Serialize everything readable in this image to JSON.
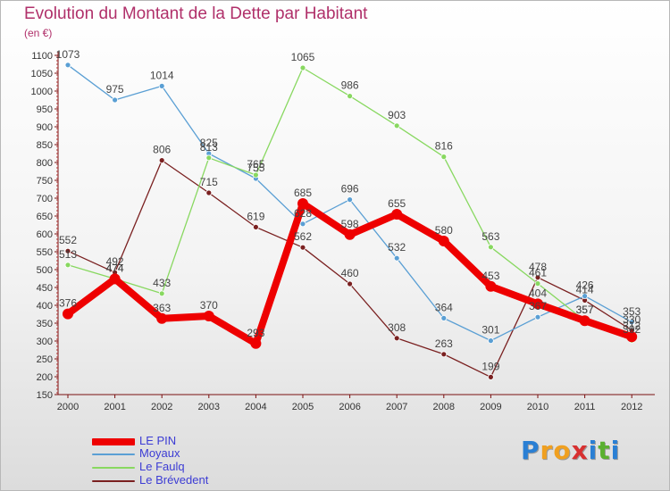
{
  "title": "Evolution du Montant de la Dette par Habitant",
  "unit": "(en €)",
  "logo": {
    "letters": [
      "P",
      "r",
      "o",
      "x",
      "i",
      "t",
      "i"
    ],
    "colors": [
      "#2a7fd4",
      "#f0a020",
      "#f0a020",
      "#d83030",
      "#2a7fd4",
      "#5ab030",
      "#2a7fd4"
    ]
  },
  "chart_data": {
    "type": "line",
    "title": "Evolution du Montant de la Dette par Habitant",
    "ylabel": "(en €)",
    "x": [
      "2000",
      "2001",
      "2002",
      "2003",
      "2004",
      "2005",
      "2006",
      "2007",
      "2008",
      "2009",
      "2010",
      "2011",
      "2012"
    ],
    "ylim": [
      150,
      1100
    ],
    "yticks": [
      150,
      200,
      250,
      300,
      350,
      400,
      450,
      500,
      550,
      600,
      650,
      700,
      750,
      800,
      850,
      900,
      950,
      1000,
      1050,
      1100
    ],
    "grid": false,
    "legend": "bottom-left",
    "series": [
      {
        "name": "LE PIN",
        "color": "#ee0000",
        "values": [
          376,
          474,
          363,
          370,
          293,
          685,
          598,
          655,
          580,
          453,
          404,
          357,
          312
        ],
        "labels": [
          "376",
          "474",
          "363",
          "370",
          "293",
          "685",
          "598",
          "655",
          "580",
          "453",
          "404",
          "357",
          "312"
        ]
      },
      {
        "name": "Moyaux",
        "color": "#5a9fd4",
        "values": [
          1073,
          975,
          1014,
          825,
          755,
          628,
          696,
          532,
          364,
          301,
          367,
          426,
          353
        ],
        "labels": [
          "1073",
          "975",
          "1014",
          "825",
          "755",
          "628",
          "696",
          "532",
          "364",
          "301",
          "367",
          "426",
          "353"
        ]
      },
      {
        "name": "Le Faulq",
        "color": "#88d860",
        "values": [
          513,
          474,
          433,
          813,
          765,
          1065,
          986,
          903,
          816,
          563,
          461,
          357,
          302
        ],
        "labels": [
          "513",
          "474",
          "433",
          "813",
          "765",
          "1065",
          "986",
          "903",
          "816",
          "563",
          "461",
          "357",
          "302"
        ]
      },
      {
        "name": "Le Brévedent",
        "color": "#7a2020",
        "values": [
          552,
          492,
          806,
          715,
          619,
          562,
          460,
          308,
          263,
          199,
          478,
          414,
          330
        ],
        "labels": [
          "552",
          "492",
          "806",
          "715",
          "619",
          "562",
          "460",
          "308",
          "263",
          "199",
          "478",
          "414",
          "330"
        ]
      }
    ]
  }
}
